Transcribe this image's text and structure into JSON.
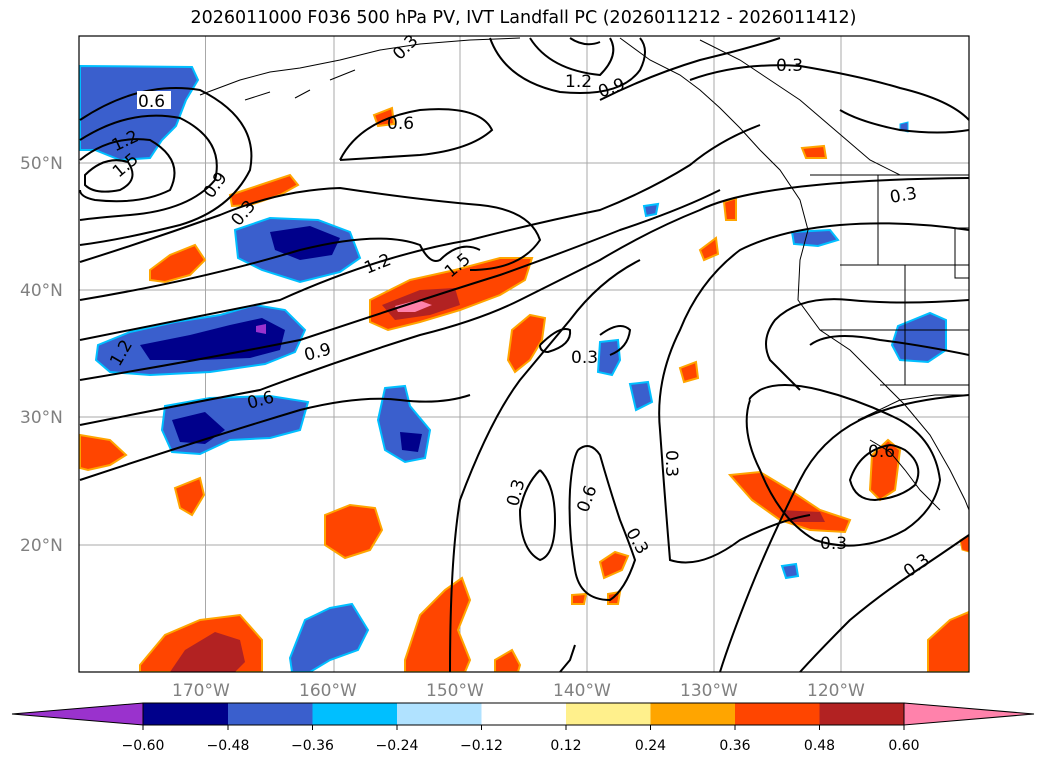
{
  "title": "2026011000 F036 500 hPa PV, IVT Landfall PC (2026011212 - 2026011412)",
  "map": {
    "lon_range": [
      -180,
      -110
    ],
    "lat_range": [
      10,
      60
    ],
    "lat_labels": [
      "50°N",
      "40°N",
      "30°N",
      "20°N"
    ],
    "lon_labels": [
      "170°W",
      "160°W",
      "150°W",
      "140°W",
      "130°W",
      "120°W"
    ],
    "lat_ticks": [
      50,
      40,
      30,
      20
    ],
    "lon_ticks": [
      -170,
      -160,
      -150,
      -140,
      -130,
      -120
    ],
    "contour_labels": [
      "0.6",
      "1.2",
      "1.5",
      "0.9",
      "0.3",
      "1.2",
      "1.5",
      "1.2",
      "0.9",
      "0.6",
      "0.6",
      "0.3",
      "1.2",
      "0.9",
      "0.3",
      "0.3",
      "0.3",
      "0.3",
      "0.6",
      "0.3",
      "0.6",
      "0.3",
      "0.3"
    ],
    "grid_color": "#999999",
    "label_color": "#808080"
  },
  "colorbar": {
    "tick_labels": [
      "−0.60",
      "−0.48",
      "−0.36",
      "−0.24",
      "−0.12",
      "0.12",
      "0.24",
      "0.36",
      "0.48",
      "0.60"
    ],
    "colors": [
      "#9a32cd",
      "#00008b",
      "#3a5fcd",
      "#00bfff",
      "#b0e2ff",
      "#ffffff",
      "#fff08c",
      "#ffa500",
      "#ff4500",
      "#b22222",
      "#ff82ab"
    ]
  }
}
